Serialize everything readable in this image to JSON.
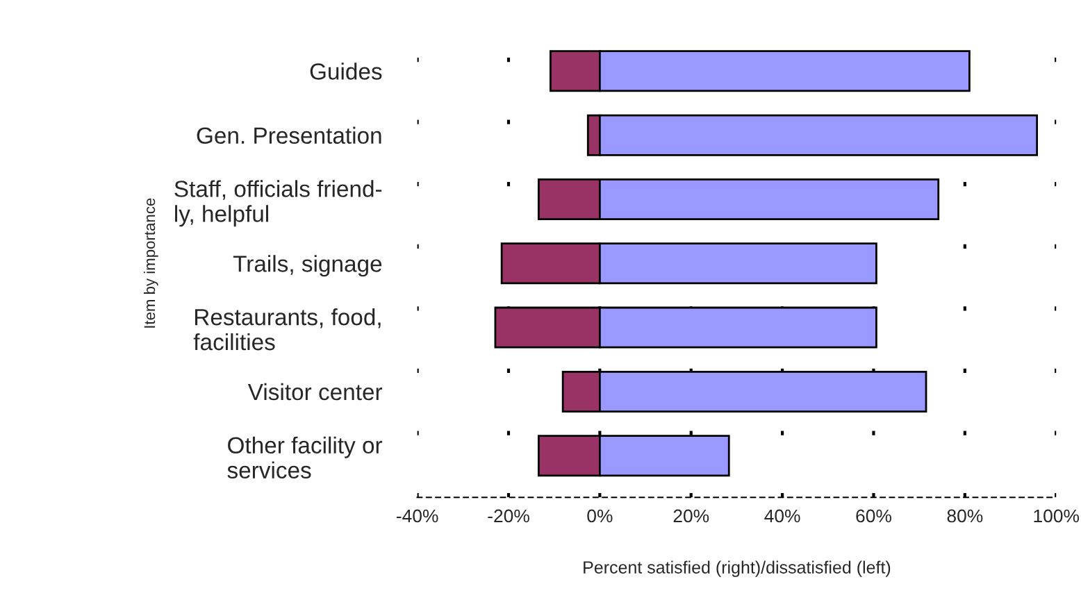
{
  "chart_data": {
    "type": "bar",
    "orientation": "horizontal",
    "xlabel": "Percent satisfied (right)/dissatisfied (left)",
    "ylabel": "Item by importance",
    "categories": [
      "Guides",
      "Gen. Presentation",
      "Staff, officials friend-\nly, helpful",
      "Trails, signage",
      "Restaurants, food,\nfacilities",
      "Visitor center",
      "Other facility or\nservices"
    ],
    "series": [
      {
        "color": "#993366",
        "values": [
          -10.8,
          -2.6,
          -13.4,
          -21.5,
          -22.9,
          -8.1,
          -13.4
        ]
      },
      {
        "color": "#9999ff",
        "values": [
          81.0,
          95.8,
          74.2,
          60.6,
          60.6,
          71.5,
          28.3
        ]
      }
    ],
    "xlim": [
      -40,
      100
    ],
    "xticks": [
      {
        "value": -40,
        "label": "-40%"
      },
      {
        "value": -20,
        "label": "-20%"
      },
      {
        "value": 0,
        "label": "0%"
      },
      {
        "value": 20,
        "label": "20%"
      },
      {
        "value": 40,
        "label": "40%"
      },
      {
        "value": 60,
        "label": "60%"
      },
      {
        "value": 80,
        "label": "80%"
      },
      {
        "value": 100,
        "label": "100%"
      }
    ],
    "grid": "x",
    "stacked": true
  }
}
